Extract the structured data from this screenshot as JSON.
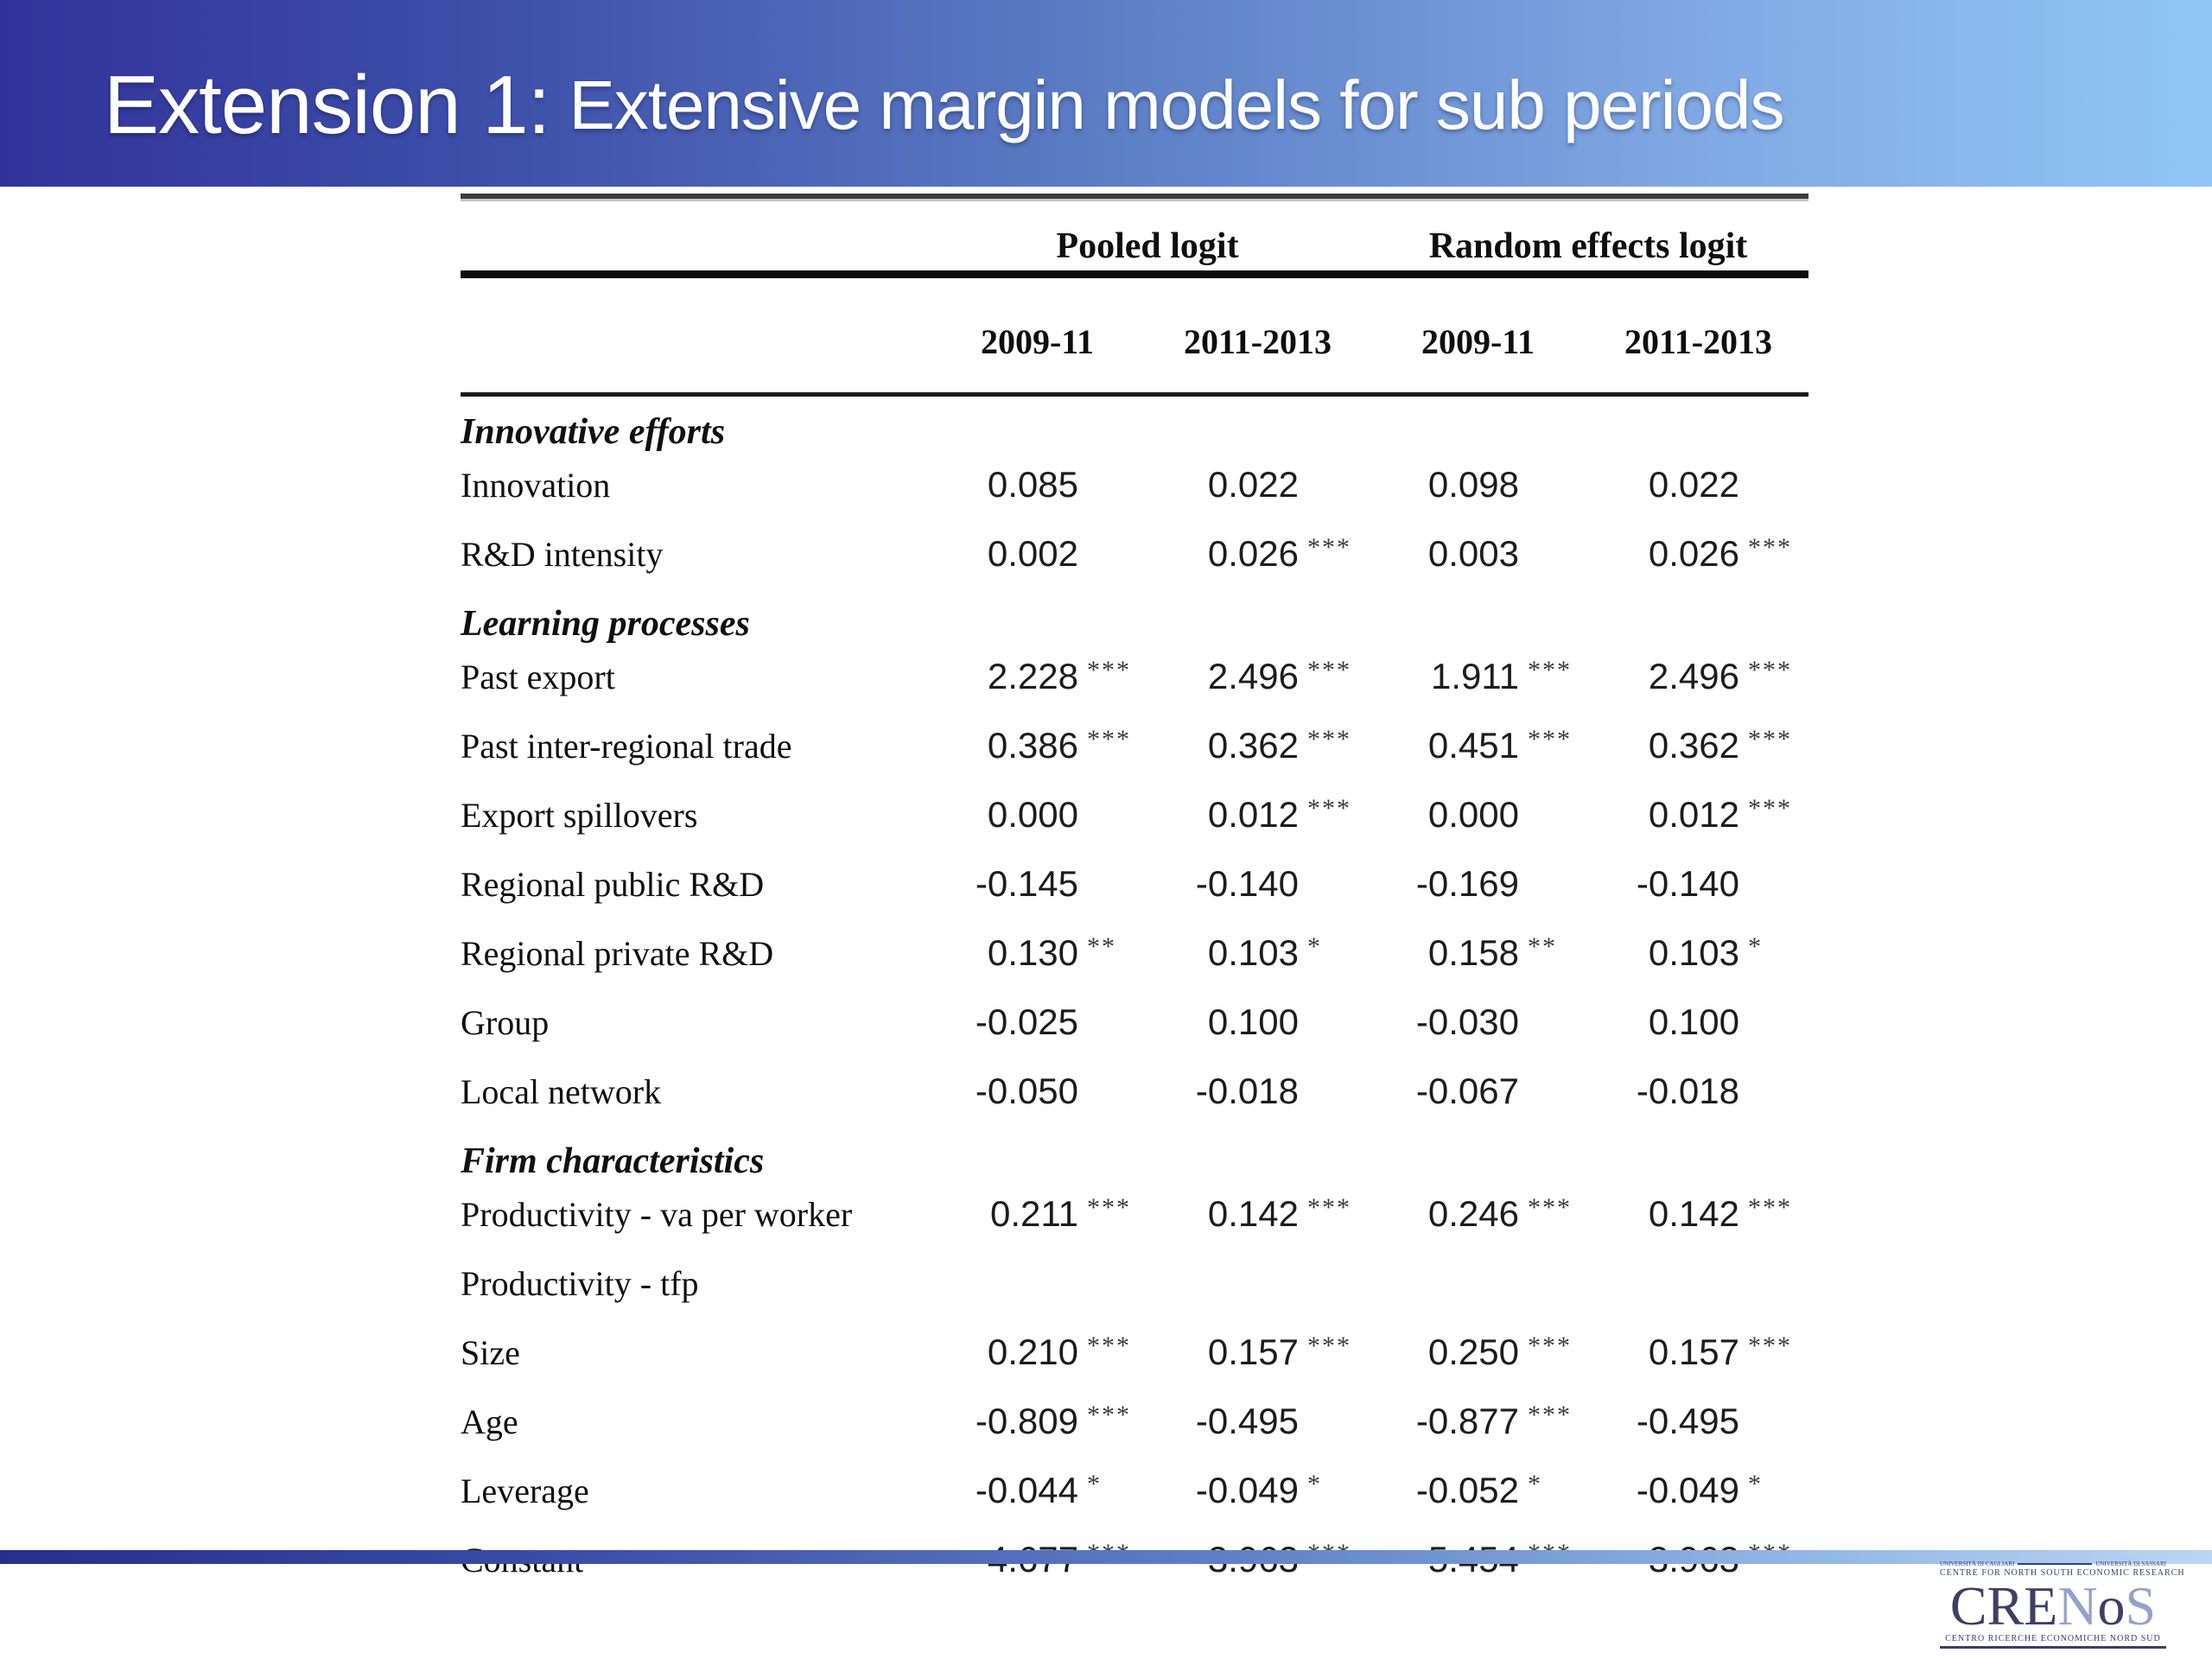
{
  "slide": {
    "title_main": "Extension 1:",
    "title_sub": "Extensive margin models for sub periods"
  },
  "table": {
    "group_headers": [
      {
        "label": "Pooled logit",
        "span": 2
      },
      {
        "label": "Random effects logit",
        "span": 2
      }
    ],
    "column_headers": [
      "2009-11",
      "2011-2013",
      "2009-11",
      "2011-2013"
    ],
    "rows": [
      {
        "type": "section",
        "label": "Innovative efforts"
      },
      {
        "type": "data",
        "label": "Innovation",
        "values": [
          {
            "v": "0.085",
            "s": ""
          },
          {
            "v": "0.022",
            "s": ""
          },
          {
            "v": "0.098",
            "s": ""
          },
          {
            "v": "0.022",
            "s": ""
          }
        ]
      },
      {
        "type": "data",
        "label": "R&D intensity",
        "values": [
          {
            "v": "0.002",
            "s": ""
          },
          {
            "v": "0.026",
            "s": "***"
          },
          {
            "v": "0.003",
            "s": ""
          },
          {
            "v": "0.026",
            "s": "***"
          }
        ]
      },
      {
        "type": "section",
        "label": "Learning processes"
      },
      {
        "type": "data",
        "label": "Past export",
        "values": [
          {
            "v": "2.228",
            "s": "***"
          },
          {
            "v": "2.496",
            "s": "***"
          },
          {
            "v": "1.911",
            "s": "***"
          },
          {
            "v": "2.496",
            "s": "***"
          }
        ]
      },
      {
        "type": "data",
        "label": "Past inter-regional trade",
        "values": [
          {
            "v": "0.386",
            "s": "***"
          },
          {
            "v": "0.362",
            "s": "***"
          },
          {
            "v": "0.451",
            "s": "***"
          },
          {
            "v": "0.362",
            "s": "***"
          }
        ]
      },
      {
        "type": "data",
        "label": "Export spillovers",
        "values": [
          {
            "v": "0.000",
            "s": ""
          },
          {
            "v": "0.012",
            "s": "***"
          },
          {
            "v": "0.000",
            "s": ""
          },
          {
            "v": "0.012",
            "s": "***"
          }
        ]
      },
      {
        "type": "data",
        "label": "Regional public R&D",
        "values": [
          {
            "v": "-0.145",
            "s": ""
          },
          {
            "v": "-0.140",
            "s": ""
          },
          {
            "v": "-0.169",
            "s": ""
          },
          {
            "v": "-0.140",
            "s": ""
          }
        ]
      },
      {
        "type": "data",
        "label": "Regional private R&D",
        "values": [
          {
            "v": "0.130",
            "s": "**"
          },
          {
            "v": "0.103",
            "s": "*"
          },
          {
            "v": "0.158",
            "s": "**"
          },
          {
            "v": "0.103",
            "s": "*"
          }
        ]
      },
      {
        "type": "data",
        "label": "Group",
        "values": [
          {
            "v": "-0.025",
            "s": ""
          },
          {
            "v": "0.100",
            "s": ""
          },
          {
            "v": "-0.030",
            "s": ""
          },
          {
            "v": "0.100",
            "s": ""
          }
        ]
      },
      {
        "type": "data",
        "label": "Local network",
        "values": [
          {
            "v": "-0.050",
            "s": ""
          },
          {
            "v": "-0.018",
            "s": ""
          },
          {
            "v": "-0.067",
            "s": ""
          },
          {
            "v": "-0.018",
            "s": ""
          }
        ]
      },
      {
        "type": "section",
        "label": "Firm characteristics"
      },
      {
        "type": "data",
        "label": "Productivity - va per worker",
        "values": [
          {
            "v": "0.211",
            "s": "***"
          },
          {
            "v": "0.142",
            "s": "***"
          },
          {
            "v": "0.246",
            "s": "***"
          },
          {
            "v": "0.142",
            "s": "***"
          }
        ]
      },
      {
        "type": "data",
        "label": "Productivity - tfp",
        "values": [
          {
            "v": "",
            "s": ""
          },
          {
            "v": "",
            "s": ""
          },
          {
            "v": "",
            "s": ""
          },
          {
            "v": "",
            "s": ""
          }
        ]
      },
      {
        "type": "data",
        "label": "Size",
        "values": [
          {
            "v": "0.210",
            "s": "***"
          },
          {
            "v": "0.157",
            "s": "***"
          },
          {
            "v": "0.250",
            "s": "***"
          },
          {
            "v": "0.157",
            "s": "***"
          }
        ]
      },
      {
        "type": "data",
        "label": "Age",
        "values": [
          {
            "v": "-0.809",
            "s": "***"
          },
          {
            "v": "-0.495",
            "s": ""
          },
          {
            "v": "-0.877",
            "s": "***"
          },
          {
            "v": "-0.495",
            "s": ""
          }
        ]
      },
      {
        "type": "data",
        "label": "Leverage",
        "values": [
          {
            "v": "-0.044",
            "s": "*"
          },
          {
            "v": "-0.049",
            "s": "*"
          },
          {
            "v": "-0.052",
            "s": "*"
          },
          {
            "v": "-0.049",
            "s": "*"
          }
        ]
      },
      {
        "type": "data",
        "label": "Constant",
        "values": [
          {
            "v": "-4.677",
            "s": "***"
          },
          {
            "v": "-3.963",
            "s": "***"
          },
          {
            "v": "-5.454",
            "s": "***"
          },
          {
            "v": "-3.963",
            "s": "***"
          }
        ]
      }
    ]
  },
  "footer": {
    "logo": {
      "university_left": "UNIVERSITÀ DI CAGLIARI",
      "university_right": "UNIVERSITÀ DI SASSARI",
      "subtitle_en": "CENTRE FOR NORTH SOUTH ECONOMIC RESEARCH",
      "wordmark_parts": [
        "CRE",
        "N",
        "o",
        "S"
      ],
      "subtitle_it": "CENTRO RICERCHE ECONOMICHE NORD SUD"
    }
  },
  "colors": {
    "banner_gradient_left": "#32339a",
    "banner_gradient_right": "#90c6f7",
    "footer_bar_left": "#272f8c",
    "footer_bar_right": "#b9d6f3",
    "logo_dark": "#3e3f63",
    "logo_light": "#94a3cb",
    "title_text": "#ffffff"
  }
}
